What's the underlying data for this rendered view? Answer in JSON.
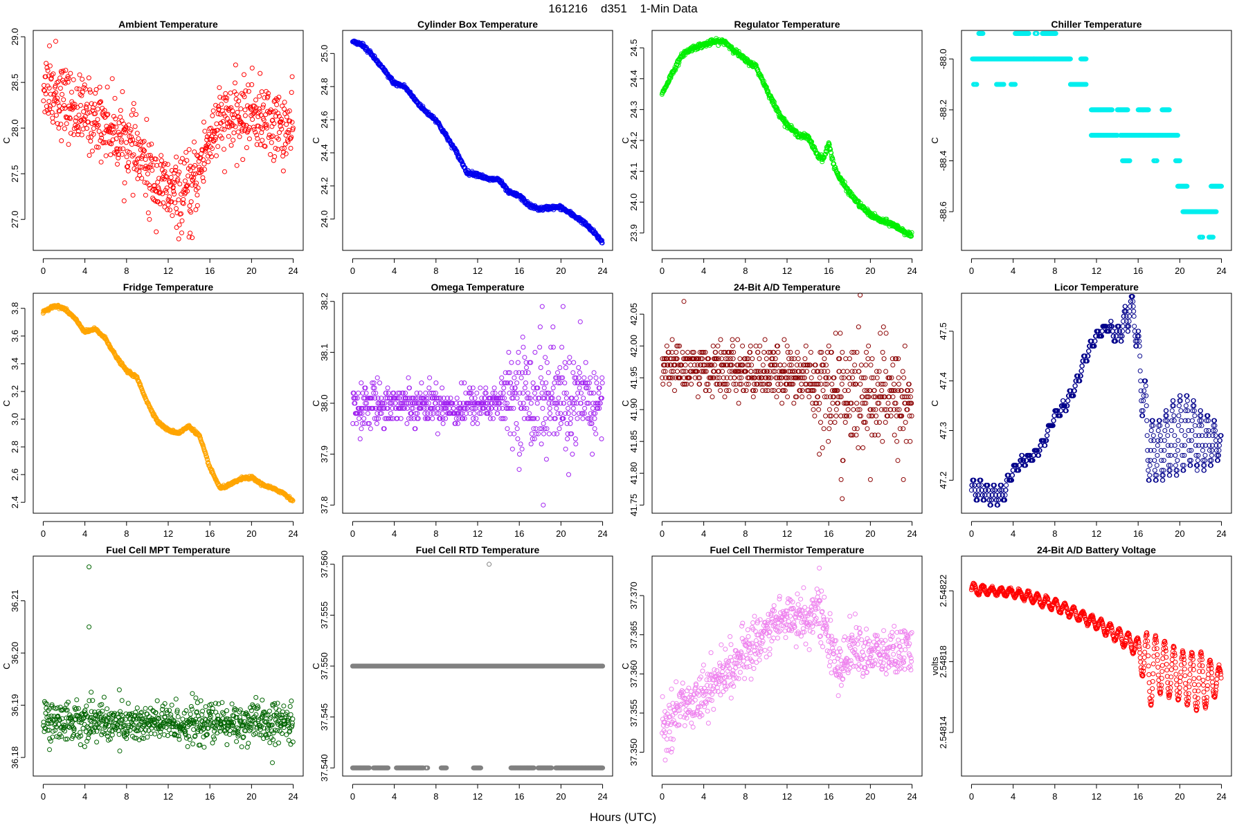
{
  "title": "161216    d351    1-Min Data",
  "xlabel": "Hours (UTC)",
  "chart_data": [
    {
      "type": "scatter",
      "title": "Ambient Temperature",
      "ylabel": "C",
      "color": "#ff0000",
      "xlim": [
        0,
        24
      ],
      "xticks": [
        0,
        4,
        8,
        12,
        16,
        20,
        24
      ],
      "ylim": [
        26.75,
        28.98
      ],
      "yticks": [
        27.0,
        27.5,
        28.0,
        28.5,
        29.0
      ],
      "ydecimals": 1,
      "style": "scatter",
      "noise": 0.55,
      "x": [
        0,
        1,
        2,
        3,
        4,
        5,
        6,
        7,
        8,
        9,
        10,
        11,
        12,
        13,
        14,
        15,
        16,
        17,
        18,
        19,
        20,
        21,
        22,
        23,
        24
      ],
      "y": [
        28.5,
        28.4,
        28.3,
        28.2,
        28.15,
        28.1,
        28.05,
        27.95,
        27.85,
        27.7,
        27.55,
        27.4,
        27.3,
        27.25,
        27.3,
        27.55,
        27.9,
        28.05,
        28.1,
        28.1,
        28.2,
        28.1,
        28.05,
        28.0,
        27.95
      ],
      "outliers": [
        [
          0.6,
          28.9
        ],
        [
          1.2,
          28.95
        ],
        [
          14.3,
          26.8
        ],
        [
          14.1,
          26.85
        ],
        [
          10.2,
          27.0
        ]
      ]
    },
    {
      "type": "scatter",
      "title": "Cylinder Box Temperature",
      "ylabel": "C",
      "color": "#0000ee",
      "xlim": [
        0,
        24
      ],
      "xticks": [
        0,
        4,
        8,
        12,
        16,
        20,
        24
      ],
      "ylim": [
        23.86,
        25.09
      ],
      "yticks": [
        24.0,
        24.2,
        24.4,
        24.6,
        24.8,
        25.0
      ],
      "ydecimals": 1,
      "style": "line",
      "noise": 0.015,
      "x": [
        0,
        1,
        2,
        3,
        4,
        5,
        6,
        7,
        8,
        9,
        10,
        11,
        12,
        13,
        14,
        15,
        16,
        17,
        18,
        19,
        20,
        21,
        22,
        23,
        24
      ],
      "y": [
        25.07,
        25.05,
        24.98,
        24.9,
        24.82,
        24.8,
        24.72,
        24.65,
        24.6,
        24.5,
        24.4,
        24.28,
        24.27,
        24.24,
        24.24,
        24.16,
        24.14,
        24.08,
        24.06,
        24.07,
        24.07,
        24.03,
        23.99,
        23.93,
        23.86
      ],
      "outliers": []
    },
    {
      "type": "scatter",
      "title": "Regulator Temperature",
      "ylabel": "C",
      "color": "#00ee00",
      "xlim": [
        0,
        24
      ],
      "xticks": [
        0,
        4,
        8,
        12,
        16,
        20,
        24
      ],
      "ylim": [
        23.87,
        24.53
      ],
      "yticks": [
        23.9,
        24.0,
        24.1,
        24.2,
        24.3,
        24.4,
        24.5
      ],
      "ydecimals": 1,
      "style": "line",
      "noise": 0.01,
      "x": [
        0,
        1,
        2,
        3,
        4,
        5,
        6,
        7,
        8,
        9,
        10,
        11,
        12,
        13,
        14,
        15,
        15.5,
        16,
        16.5,
        17,
        18,
        19,
        20,
        21,
        22,
        23,
        24
      ],
      "y": [
        24.35,
        24.42,
        24.48,
        24.5,
        24.51,
        24.52,
        24.52,
        24.49,
        24.46,
        24.44,
        24.37,
        24.3,
        24.25,
        24.22,
        24.21,
        24.15,
        24.14,
        24.19,
        24.12,
        24.08,
        24.03,
        23.99,
        23.96,
        23.94,
        23.93,
        23.91,
        23.89
      ],
      "outliers": []
    },
    {
      "type": "scatter",
      "title": "Chiller Temperature",
      "ylabel": "C",
      "color": "#00eeee",
      "xlim": [
        0,
        24
      ],
      "xticks": [
        0,
        4,
        8,
        12,
        16,
        20,
        24
      ],
      "ylim": [
        -88.72,
        -87.92
      ],
      "yticks": [
        -88.6,
        -88.4,
        -88.2,
        -88.0
      ],
      "ydecimals": 1,
      "style": "bands",
      "bands": [
        [
          -87.9,
          [
            [
              0.7,
              1.1
            ],
            [
              4.2,
              5.5
            ],
            [
              6.1,
              6.3
            ],
            [
              6.8,
              8.1
            ]
          ]
        ],
        [
          -88.0,
          [
            [
              0.1,
              6.0
            ],
            [
              6.0,
              9.5
            ],
            [
              10.5,
              11.0
            ]
          ]
        ],
        [
          -88.1,
          [
            [
              0.2,
              0.5
            ],
            [
              2.4,
              3.1
            ],
            [
              3.8,
              4.2
            ],
            [
              9.5,
              11.0
            ]
          ]
        ],
        [
          -88.2,
          [
            [
              11.5,
              13.5
            ],
            [
              14.0,
              15.0
            ],
            [
              16.0,
              17.0
            ],
            [
              18.3,
              19.0
            ]
          ]
        ],
        [
          -88.3,
          [
            [
              11.5,
              14.0
            ],
            [
              14.3,
              19.8
            ]
          ]
        ],
        [
          -88.4,
          [
            [
              14.5,
              15.2
            ],
            [
              17.5,
              17.8
            ],
            [
              19.6,
              20.0
            ]
          ]
        ],
        [
          -88.5,
          [
            [
              19.8,
              20.7
            ],
            [
              23.0,
              24.0
            ]
          ]
        ],
        [
          -88.6,
          [
            [
              20.3,
              23.5
            ]
          ]
        ],
        [
          -88.7,
          [
            [
              21.9,
              22.2
            ],
            [
              22.8,
              23.2
            ]
          ]
        ]
      ]
    },
    {
      "type": "scatter",
      "title": "Fridge Temperature",
      "ylabel": "C",
      "color": "#ffa500",
      "xlim": [
        0,
        24
      ],
      "xticks": [
        0,
        4,
        8,
        12,
        16,
        20,
        24
      ],
      "ylim": [
        2.38,
        3.85
      ],
      "yticks": [
        2.4,
        2.6,
        2.8,
        3.0,
        3.2,
        3.4,
        3.6,
        3.8
      ],
      "ydecimals": 1,
      "style": "line",
      "noise": 0.012,
      "x": [
        0,
        1,
        2,
        3,
        4,
        5,
        6,
        7,
        8,
        9,
        10,
        11,
        12,
        13,
        14,
        15,
        16,
        17,
        18,
        19,
        20,
        21,
        22,
        23,
        24
      ],
      "y": [
        3.77,
        3.82,
        3.8,
        3.73,
        3.63,
        3.65,
        3.58,
        3.45,
        3.35,
        3.3,
        3.12,
        2.98,
        2.92,
        2.9,
        2.95,
        2.88,
        2.65,
        2.5,
        2.53,
        2.57,
        2.58,
        2.53,
        2.5,
        2.47,
        2.41
      ],
      "outliers": []
    },
    {
      "type": "scatter",
      "title": "Omega Temperature",
      "ylabel": "C",
      "color": "#a020f0",
      "xlim": [
        0,
        24
      ],
      "xticks": [
        0,
        4,
        8,
        12,
        16,
        20,
        24
      ],
      "ylim": [
        37.8,
        38.2
      ],
      "yticks": [
        37.8,
        37.9,
        38.0,
        38.1,
        38.2
      ],
      "ydecimals": 1,
      "style": "quant",
      "step": 0.01,
      "x": [
        0,
        2,
        4,
        6,
        8,
        10,
        12,
        14,
        16,
        18,
        20,
        22,
        24
      ],
      "y": [
        37.99,
        38.0,
        38.0,
        38.0,
        38.0,
        37.99,
        38.0,
        38.0,
        38.02,
        38.01,
        38.0,
        38.0,
        38.0
      ],
      "spread": [
        0.04,
        0.05,
        0.04,
        0.04,
        0.04,
        0.04,
        0.04,
        0.04,
        0.11,
        0.13,
        0.12,
        0.1,
        0.07
      ],
      "outliers": [
        [
          18.3,
          37.8
        ],
        [
          18.2,
          38.19
        ],
        [
          20.2,
          38.19
        ]
      ]
    },
    {
      "type": "scatter",
      "title": "24-Bit A/D Temperature",
      "ylabel": "C",
      "color": "#8b0000",
      "xlim": [
        0,
        24
      ],
      "xticks": [
        0,
        4,
        8,
        12,
        16,
        20,
        24
      ],
      "ylim": [
        41.75,
        42.07
      ],
      "yticks": [
        41.75,
        41.8,
        41.85,
        41.9,
        41.95,
        42.0,
        42.05
      ],
      "ydecimals": 2,
      "style": "quant",
      "step": 0.01,
      "x": [
        0,
        4,
        8,
        12,
        14,
        16,
        18,
        20,
        22,
        24
      ],
      "y": [
        41.97,
        41.965,
        41.96,
        41.955,
        41.95,
        41.93,
        41.92,
        41.925,
        41.92,
        41.91
      ],
      "spread": [
        0.04,
        0.04,
        0.045,
        0.05,
        0.06,
        0.09,
        0.1,
        0.09,
        0.09,
        0.09
      ],
      "outliers": [
        [
          2.1,
          42.07
        ],
        [
          17.3,
          41.76
        ],
        [
          20.0,
          41.79
        ]
      ]
    },
    {
      "type": "scatter",
      "title": "Licor Temperature",
      "ylabel": "C",
      "color": "#00008b",
      "xlim": [
        0,
        24
      ],
      "xticks": [
        0,
        4,
        8,
        12,
        16,
        20,
        24
      ],
      "ylim": [
        47.15,
        47.56
      ],
      "yticks": [
        47.2,
        47.3,
        47.4,
        47.5
      ],
      "ydecimals": 1,
      "style": "licor",
      "x": [
        0,
        1,
        2,
        3,
        4,
        5,
        6,
        7,
        8,
        9,
        10,
        11,
        12,
        13,
        14,
        15,
        15.5,
        16,
        16.5,
        17,
        18,
        19,
        20,
        21,
        22,
        23,
        24
      ],
      "y": [
        47.18,
        47.18,
        47.17,
        47.17,
        47.22,
        47.24,
        47.25,
        47.28,
        47.33,
        47.35,
        47.39,
        47.45,
        47.49,
        47.51,
        47.49,
        47.53,
        47.56,
        47.45,
        47.38,
        47.26,
        47.26,
        47.28,
        47.29,
        47.3,
        47.28,
        47.28,
        47.27
      ],
      "spread": [
        0.02,
        0.02,
        0.02,
        0.02,
        0.01,
        0.01,
        0.01,
        0.01,
        0.01,
        0.01,
        0.01,
        0.01,
        0.01,
        0.01,
        0.02,
        0.03,
        0.01,
        0.05,
        0.07,
        0.06,
        0.06,
        0.07,
        0.08,
        0.07,
        0.06,
        0.05,
        0.02
      ]
    },
    {
      "type": "scatter",
      "title": "Fuel Cell MPT Temperature",
      "ylabel": "C",
      "color": "#006400",
      "xlim": [
        0,
        24
      ],
      "xticks": [
        0,
        4,
        8,
        12,
        16,
        20,
        24
      ],
      "ylim": [
        36.178,
        36.217
      ],
      "yticks": [
        36.18,
        36.19,
        36.2,
        36.21
      ],
      "ydecimals": 2,
      "style": "scatter",
      "noise": 0.0055,
      "x": [
        0,
        4,
        8,
        12,
        16,
        20,
        24
      ],
      "y": [
        36.187,
        36.187,
        36.1865,
        36.1865,
        36.1865,
        36.1865,
        36.1865
      ],
      "outliers": [
        [
          4.4,
          36.2165
        ],
        [
          4.4,
          36.205
        ],
        [
          4.6,
          36.1925
        ],
        [
          0.6,
          36.1815
        ],
        [
          22.0,
          36.179
        ]
      ]
    },
    {
      "type": "scatter",
      "title": "Fuel Cell RTD Temperature",
      "ylabel": "C",
      "color": "#808080",
      "xlim": [
        0,
        24
      ],
      "xticks": [
        0,
        4,
        8,
        12,
        16,
        20,
        24
      ],
      "ylim": [
        37.54,
        37.56
      ],
      "yticks": [
        37.54,
        37.545,
        37.55,
        37.555,
        37.56
      ],
      "ydecimals": 3,
      "style": "bands",
      "bands": [
        [
          37.55,
          [
            [
              0.0,
              24.0
            ]
          ]
        ],
        [
          37.54,
          [
            [
              0.0,
              1.6
            ],
            [
              2.0,
              3.4
            ],
            [
              4.2,
              6.8
            ],
            [
              7.0,
              7.2
            ],
            [
              8.5,
              9.0
            ],
            [
              11.6,
              12.3
            ],
            [
              15.2,
              17.4
            ],
            [
              17.8,
              19.1
            ],
            [
              19.5,
              24.0
            ]
          ]
        ]
      ],
      "outliers": [
        [
          13.1,
          37.56
        ]
      ]
    },
    {
      "type": "scatter",
      "title": "Fuel Cell Thermistor Temperature",
      "ylabel": "C",
      "color": "#ee82ee",
      "xlim": [
        0,
        24
      ],
      "xticks": [
        0,
        4,
        8,
        12,
        16,
        20,
        24
      ],
      "ylim": [
        37.348,
        37.374
      ],
      "yticks": [
        37.35,
        37.355,
        37.36,
        37.365,
        37.37
      ],
      "ydecimals": 3,
      "style": "scatter",
      "noise": 0.0045,
      "x": [
        0,
        2,
        4,
        6,
        8,
        10,
        12,
        14,
        15,
        16,
        17,
        18,
        20,
        22,
        24
      ],
      "y": [
        37.353,
        37.356,
        37.3575,
        37.36,
        37.3625,
        37.3655,
        37.3675,
        37.367,
        37.368,
        37.365,
        37.36,
        37.3635,
        37.3625,
        37.3625,
        37.363
      ],
      "outliers": [
        [
          0.3,
          37.349
        ],
        [
          15.1,
          37.3735
        ]
      ]
    },
    {
      "type": "scatter",
      "title": "24-Bit A/D Battery Voltage",
      "ylabel": "volts",
      "color": "#ff0000",
      "xlim": [
        0,
        24
      ],
      "xticks": [
        0,
        4,
        8,
        12,
        16,
        20,
        24
      ],
      "ylim": [
        2.54812,
        2.548235
      ],
      "yticks": [
        2.54814,
        2.54818,
        2.54822
      ],
      "ydecimals": 5,
      "style": "osc",
      "x": [
        0,
        2,
        4,
        6,
        8,
        10,
        12,
        14,
        16,
        17,
        18,
        20,
        22,
        24
      ],
      "y": [
        2.548221,
        2.54822,
        2.548219,
        2.548216,
        2.548212,
        2.548207,
        2.548202,
        2.548195,
        2.548188,
        2.548175,
        2.548178,
        2.548172,
        2.548168,
        2.54817
      ],
      "amp": [
        3e-06,
        2e-06,
        2e-06,
        3e-06,
        3e-06,
        3e-06,
        3e-06,
        4e-06,
        5e-06,
        2.2e-05,
        1.6e-05,
        1.4e-05,
        1.7e-05,
        6e-06
      ]
    }
  ]
}
